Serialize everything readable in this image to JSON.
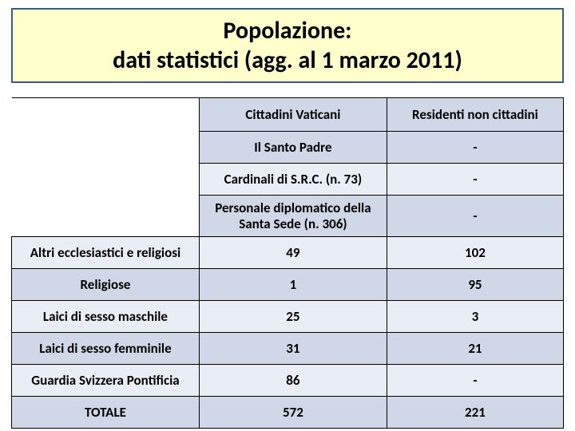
{
  "title": {
    "line1": "Popolazione:",
    "line2": "dati statistici (agg. al 1 marzo 2011)"
  },
  "table": {
    "headers": {
      "col2": "Cittadini Vaticani",
      "col3": "Residenti non cittadini"
    },
    "rows": [
      {
        "c1": "",
        "c2": "Il Santo Padre",
        "c3": "-",
        "blank": true
      },
      {
        "c1": "",
        "c2": "Cardinali di S.R.C. (n. 73)",
        "c3": "-",
        "blank": true
      },
      {
        "c1": "",
        "c2": "Personale diplomatico della Santa Sede (n. 306)",
        "c3": "-",
        "blank": true,
        "multiline": true
      },
      {
        "c1": "Altri ecclesiastici e religiosi",
        "c2": "49",
        "c3": "102"
      },
      {
        "c1": "Religiose",
        "c2": "1",
        "c3": "95"
      },
      {
        "c1": "Laici di sesso maschile",
        "c2": "25",
        "c3": "3"
      },
      {
        "c1": "Laici di sesso femminile",
        "c2": "31",
        "c3": "21"
      },
      {
        "c1": "Guardia Svizzera Pontificia",
        "c2": "86",
        "c3": "-"
      },
      {
        "c1": "TOTALE",
        "c2": "572",
        "c3": "221"
      }
    ],
    "row_shades": [
      "dk",
      "lt",
      "dk",
      "lt",
      "dk",
      "lt",
      "dk",
      "lt",
      "dk"
    ],
    "colors": {
      "title_bg": "#ffffcc",
      "title_border": "#385d8a",
      "band_dark": "#d0d8e8",
      "band_light": "#e9edf4",
      "border": "#000000",
      "text": "#000000"
    }
  }
}
